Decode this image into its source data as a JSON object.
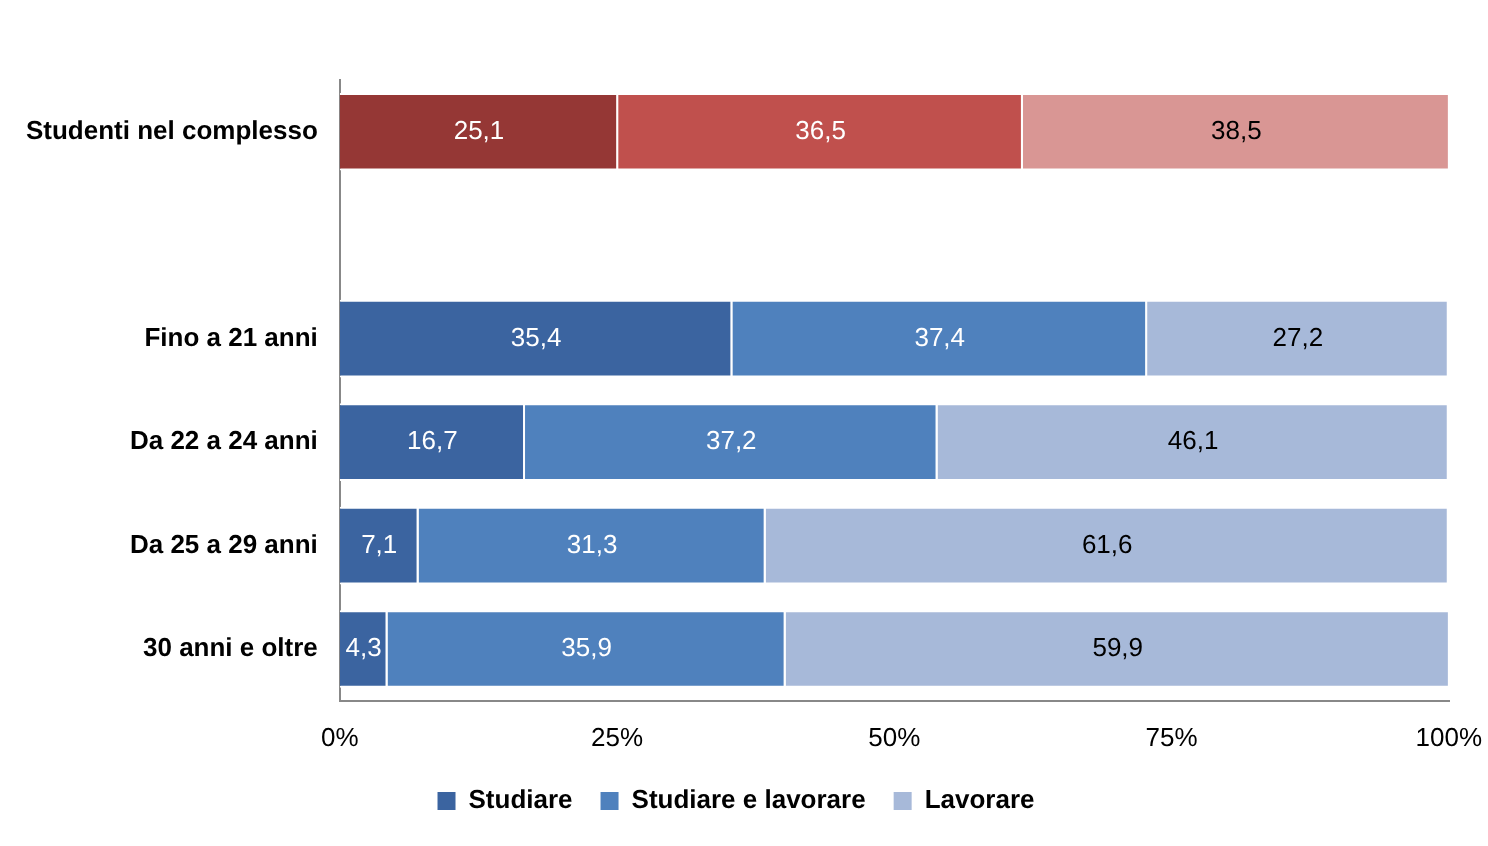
{
  "chart_data": {
    "type": "bar",
    "orientation": "horizontal",
    "stacked": true,
    "categories": [
      "Studenti nel complesso",
      null,
      "Fino a 21 anni",
      "Da 22 a 24 anni",
      "Da 25 a 29 anni",
      "30 anni e oltre"
    ],
    "series": [
      {
        "name": "Studiare",
        "color": "#3b64a0",
        "colors": [
          "#953735",
          "#3b64a0",
          "#3b64a0",
          "#3b64a0",
          "#3b64a0",
          "#3b64a0"
        ],
        "values": [
          25.1,
          null,
          35.4,
          16.7,
          7.1,
          4.3
        ],
        "value_labels": [
          "25,1",
          null,
          "35,4",
          "16,7",
          "7,1",
          "4,3"
        ]
      },
      {
        "name": "Studiare e lavorare",
        "color": "#4f81bd",
        "colors": [
          "#c0504d",
          "#4f81bd",
          "#4f81bd",
          "#4f81bd",
          "#4f81bd",
          "#4f81bd"
        ],
        "values": [
          36.5,
          null,
          37.4,
          37.2,
          31.3,
          35.9
        ],
        "value_labels": [
          "36,5",
          null,
          "37,4",
          "37,2",
          "31,3",
          "35,9"
        ]
      },
      {
        "name": "Lavorare",
        "color": "#a7b9d9",
        "colors": [
          "#d99694",
          "#a7b9d9",
          "#a7b9d9",
          "#a7b9d9",
          "#a7b9d9",
          "#a7b9d9"
        ],
        "values": [
          38.5,
          null,
          27.2,
          46.1,
          61.6,
          59.9
        ],
        "value_labels": [
          "38,5",
          null,
          "27,2",
          "46,1",
          "61,6",
          "59,9"
        ]
      }
    ],
    "xlim": [
      0,
      100
    ],
    "xticks": [
      {
        "value": 0,
        "label": "0%"
      },
      {
        "value": 25,
        "label": "25%"
      },
      {
        "value": 50,
        "label": "50%"
      },
      {
        "value": 75,
        "label": "75%"
      },
      {
        "value": 100,
        "label": "100%"
      }
    ],
    "grid": false,
    "legend": "bottom"
  }
}
